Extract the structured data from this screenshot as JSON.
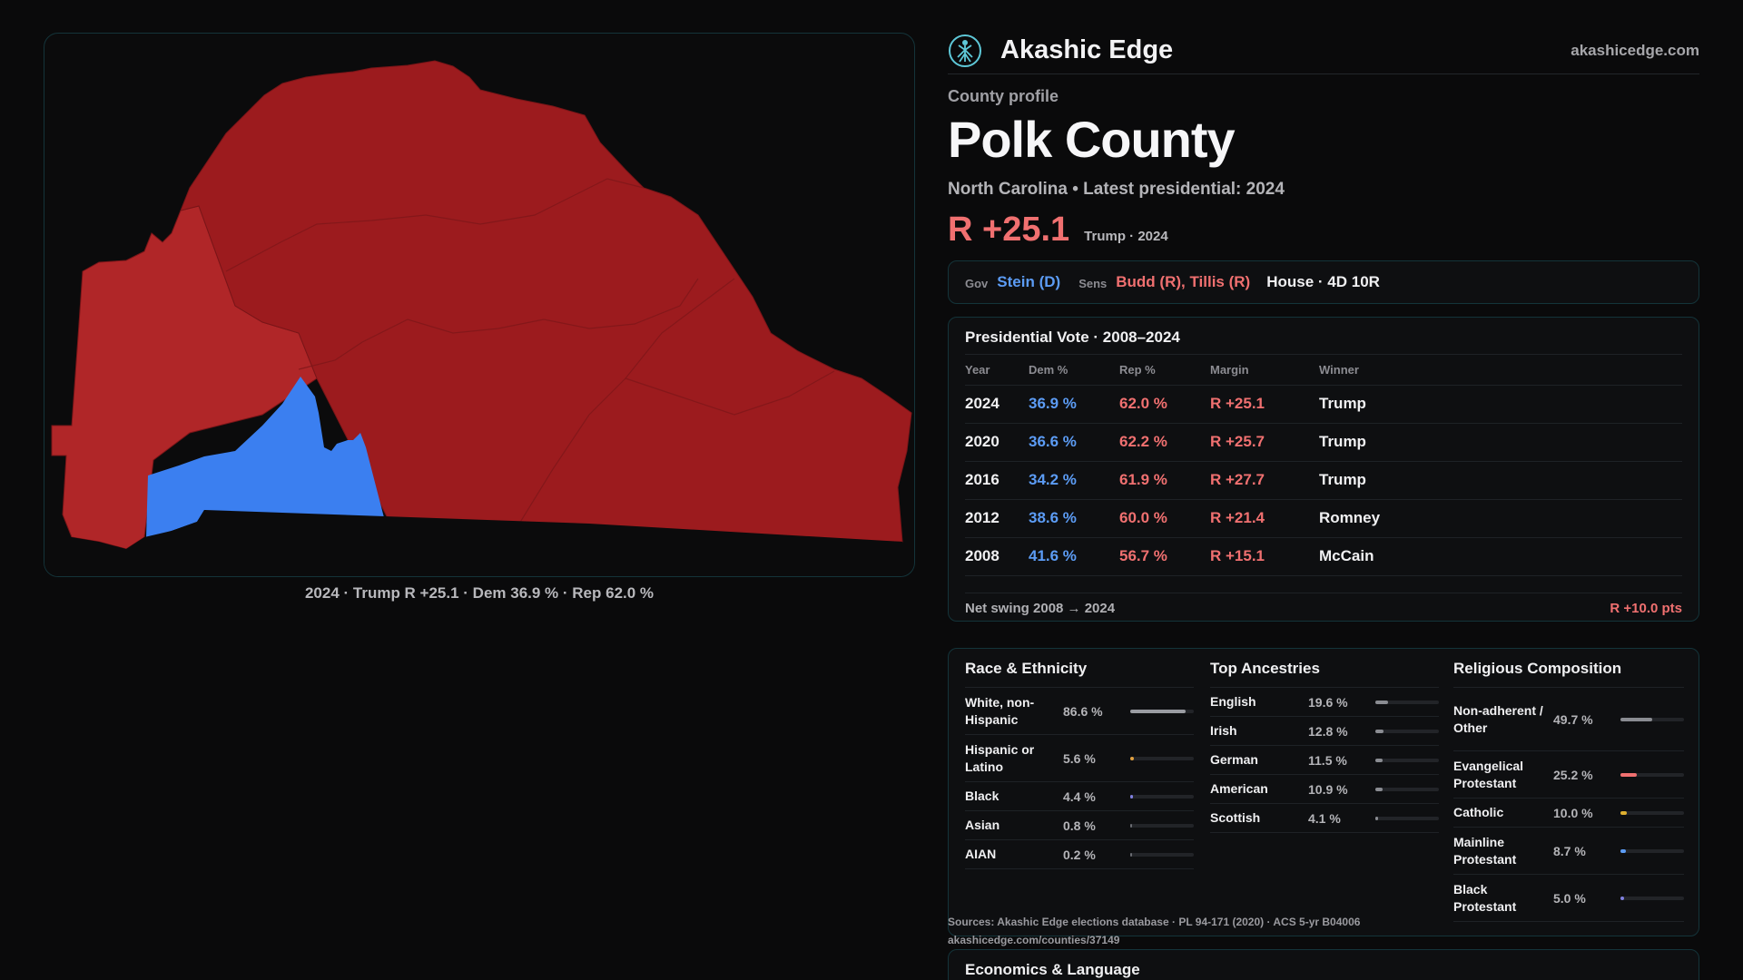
{
  "brand": {
    "name": "Akashic Edge",
    "url": "akashicedge.com",
    "logo_icon": "tree-of-life-icon"
  },
  "profile_label": "County profile",
  "county_name": "Polk County",
  "subtitle": "North Carolina • Latest presidential: 2024",
  "headline_margin": "R +25.1",
  "headline_sub": "Trump · 2024",
  "officials": {
    "gov_label": "Gov",
    "gov_value": "Stein (D)",
    "sens_label": "Sens",
    "sens_value": "Budd (R), Tillis (R)",
    "house_value": "House · 4D 10R"
  },
  "map_caption": "2024 · Trump R +25.1 · Dem 36.9 % · Rep 62.0 %",
  "vote": {
    "title": "Presidential Vote · 2008–2024",
    "headers": {
      "year": "Year",
      "dem": "Dem %",
      "rep": "Rep %",
      "margin": "Margin",
      "winner": "Winner"
    },
    "rows": [
      {
        "year": "2024",
        "dem": "36.9 %",
        "rep": "62.0 %",
        "margin": "R +25.1",
        "winner": "Trump"
      },
      {
        "year": "2020",
        "dem": "36.6 %",
        "rep": "62.2 %",
        "margin": "R +25.7",
        "winner": "Trump"
      },
      {
        "year": "2016",
        "dem": "34.2 %",
        "rep": "61.9 %",
        "margin": "R +27.7",
        "winner": "Trump"
      },
      {
        "year": "2012",
        "dem": "38.6 %",
        "rep": "60.0 %",
        "margin": "R +21.4",
        "winner": "Romney"
      },
      {
        "year": "2008",
        "dem": "41.6 %",
        "rep": "56.7 %",
        "margin": "R +15.1",
        "winner": "McCain"
      }
    ],
    "swing_label": "Net swing 2008 → 2024",
    "swing_value": "R +10.0 pts"
  },
  "race": {
    "title": "Race & Ethnicity",
    "items": [
      {
        "label": "White, non-Hispanic",
        "value": "86.6 %",
        "pct": 86.6,
        "color": "#9a9ca2"
      },
      {
        "label": "Hispanic or Latino",
        "value": "5.6 %",
        "pct": 5.6,
        "color": "#e0a040"
      },
      {
        "label": "Black",
        "value": "4.4 %",
        "pct": 4.4,
        "color": "#8080e0"
      },
      {
        "label": "Asian",
        "value": "0.8 %",
        "pct": 0.8,
        "color": "#6a6c72"
      },
      {
        "label": "AIAN",
        "value": "0.2 %",
        "pct": 0.2,
        "color": "#6a6c72"
      }
    ]
  },
  "ancestry": {
    "title": "Top Ancestries",
    "items": [
      {
        "label": "English",
        "value": "19.6 %",
        "pct": 19.6,
        "color": "#8a8c92"
      },
      {
        "label": "Irish",
        "value": "12.8 %",
        "pct": 12.8,
        "color": "#8a8c92"
      },
      {
        "label": "German",
        "value": "11.5 %",
        "pct": 11.5,
        "color": "#8a8c92"
      },
      {
        "label": "American",
        "value": "10.9 %",
        "pct": 10.9,
        "color": "#8a8c92"
      },
      {
        "label": "Scottish",
        "value": "4.1 %",
        "pct": 4.1,
        "color": "#8a8c92"
      }
    ]
  },
  "religion": {
    "title": "Religious Composition",
    "items": [
      {
        "label": "Non-adherent / Other",
        "value": "49.7 %",
        "pct": 49.7,
        "color": "#8a8c92"
      },
      {
        "label": "Evangelical Protestant",
        "value": "25.2 %",
        "pct": 25.2,
        "color": "#f07070"
      },
      {
        "label": "Catholic",
        "value": "10.0 %",
        "pct": 10.0,
        "color": "#e0b030"
      },
      {
        "label": "Mainline Protestant",
        "value": "8.7 %",
        "pct": 8.7,
        "color": "#5c9cf5"
      },
      {
        "label": "Black Protestant",
        "value": "5.0 %",
        "pct": 5.0,
        "color": "#8080e0"
      }
    ]
  },
  "sources": "Sources: Akashic Edge elections database · PL 94-171 (2020) · ACS 5-yr B04006",
  "source_url": "akashicedge.com/counties/37149",
  "econ_title": "Economics & Language",
  "colors": {
    "rep": "#9c1b1e",
    "rep_light": "#b02628",
    "dem": "#3b7ff0",
    "accent_border": "#14343a"
  }
}
